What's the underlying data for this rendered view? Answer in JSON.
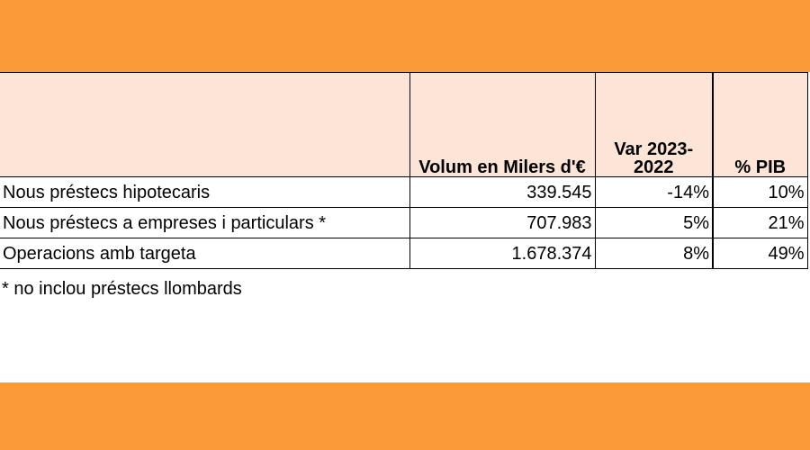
{
  "colors": {
    "band": "#fb9a38",
    "header_bg": "#fce4d6"
  },
  "table": {
    "headers": {
      "label": "",
      "volume": "Volum en Milers d'€",
      "variation": "Var 2023-2022",
      "gdp": "% PIB"
    },
    "rows": [
      {
        "label": "Nous préstecs hipotecaris",
        "volume": "339.545",
        "variation": "-14%",
        "gdp": "10%"
      },
      {
        "label": "Nous préstecs a empreses i particulars *",
        "volume": "707.983",
        "variation": "5%",
        "gdp": "21%"
      },
      {
        "label": "Operacions amb targeta",
        "volume": "1.678.374",
        "variation": "8%",
        "gdp": "49%"
      }
    ]
  },
  "footnote": "* no inclou préstecs llombards"
}
